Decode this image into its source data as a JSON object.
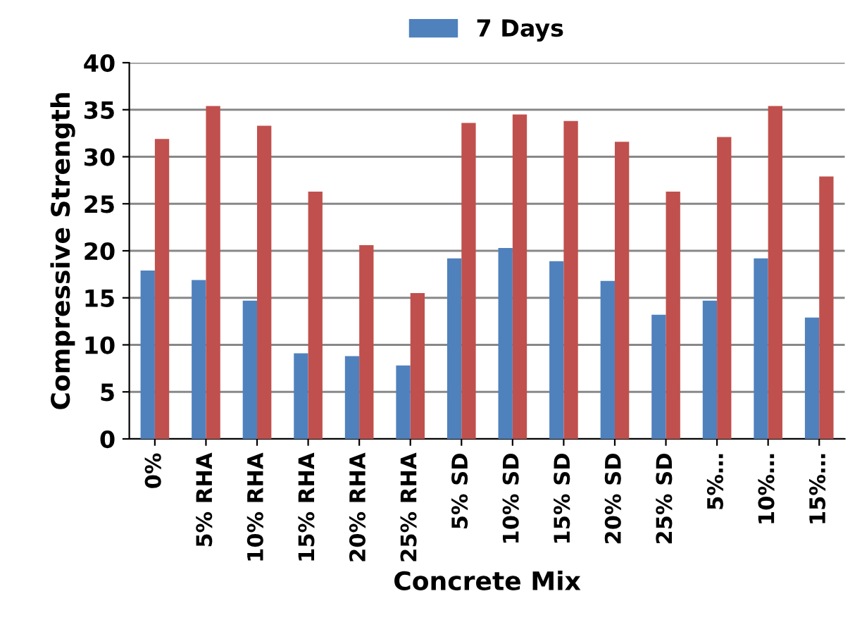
{
  "chart_data": {
    "type": "bar",
    "xlabel": "Concrete Mix",
    "ylabel": "Compressive Strength",
    "categories": [
      "0%",
      "5% RHA",
      "10% RHA",
      "15% RHA",
      "20% RHA",
      "25% RHA",
      "5% SD",
      "10% SD",
      "15% SD",
      "20% SD",
      "25% SD",
      "5%…",
      "10%…",
      "15%…"
    ],
    "series": [
      {
        "name": "7 Days",
        "color": "#4f81bd",
        "values": [
          17.9,
          16.9,
          14.7,
          9.1,
          8.8,
          7.8,
          19.2,
          20.3,
          18.9,
          16.8,
          13.2,
          14.7,
          19.2,
          12.9
        ]
      },
      {
        "color": "#c0504d",
        "values": [
          31.9,
          35.4,
          33.3,
          26.3,
          20.6,
          15.5,
          33.6,
          34.5,
          33.8,
          31.6,
          26.3,
          32.1,
          35.4,
          27.9
        ]
      }
    ],
    "ylim": [
      0,
      40
    ],
    "yticks": [
      0,
      5,
      10,
      15,
      20,
      25,
      30,
      35,
      40
    ],
    "grid": "y",
    "legend": "top"
  }
}
